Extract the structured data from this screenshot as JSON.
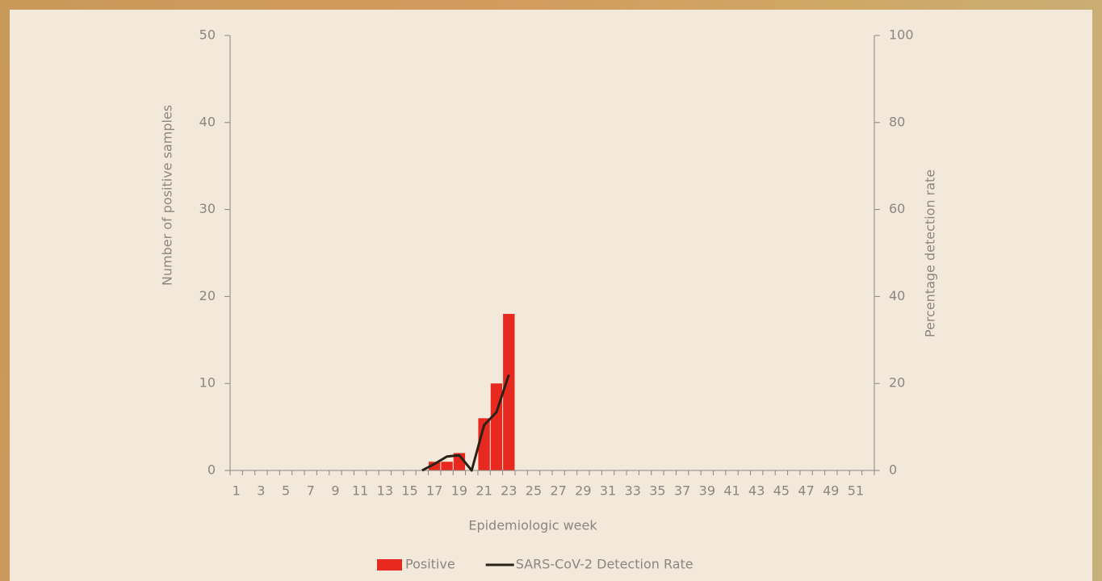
{
  "chart_data": {
    "type": "bar_line",
    "x_label": "Epidemiologic week",
    "y_label": "Number of positive samples",
    "y2_label": "Percentage detection rate",
    "categories": [
      "1",
      null,
      "3",
      null,
      "5",
      null,
      "7",
      null,
      "9",
      null,
      "11",
      null,
      "13",
      null,
      "15",
      null,
      "17",
      null,
      "19",
      null,
      "21",
      null,
      "23",
      null,
      "25",
      null,
      "27",
      null,
      "29",
      null,
      "31",
      null,
      "33",
      null,
      "35",
      null,
      "37",
      null,
      "39",
      null,
      "41",
      null,
      "43",
      null,
      "45",
      null,
      "47",
      null,
      "49",
      null,
      "51",
      null
    ],
    "series": [
      {
        "name": "Positive",
        "color": "#e8291f",
        "kind": "bar",
        "values": [
          0,
          0,
          0,
          0,
          0,
          0,
          0,
          0,
          0,
          0,
          0,
          0,
          0,
          0,
          0,
          0,
          1,
          1,
          2,
          0,
          6,
          10,
          18,
          null,
          null,
          null,
          null,
          null,
          null,
          null,
          null,
          null,
          null,
          null,
          null,
          null,
          null,
          null,
          null,
          null,
          null,
          null,
          null,
          null,
          null,
          null,
          null,
          null,
          null,
          null,
          null,
          null
        ]
      },
      {
        "name": "SARS-CoV-2 Detection Rate",
        "color": "#2a2117",
        "kind": "line",
        "axis": "y2",
        "values": [
          null,
          null,
          null,
          null,
          null,
          null,
          null,
          null,
          null,
          null,
          null,
          null,
          null,
          null,
          null,
          0,
          1.5,
          3.2,
          3.5,
          0,
          10.4,
          13.4,
          22,
          null,
          null,
          null,
          null,
          null,
          null,
          null,
          null,
          null,
          null,
          null,
          null,
          null,
          null,
          null,
          null,
          null,
          null,
          null,
          null,
          null,
          null,
          null,
          null,
          null,
          null,
          null,
          null,
          null
        ]
      }
    ],
    "ylim": [
      0,
      50
    ],
    "yticks": [
      0,
      10,
      20,
      30,
      40,
      50
    ],
    "y2lim": [
      0,
      100
    ],
    "y2ticks": [
      0,
      20,
      40,
      60,
      80,
      100
    ],
    "legend": "bottom"
  }
}
